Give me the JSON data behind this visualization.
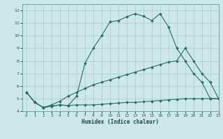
{
  "xlabel": "Humidex (Indice chaleur)",
  "ylabel": "",
  "bg_color": "#cce8e8",
  "grid_color": "#aacccc",
  "line_color": "#2a6b6b",
  "xlim": [
    -0.5,
    23
  ],
  "ylim": [
    4,
    12.5
  ],
  "xticks": [
    0,
    1,
    2,
    3,
    4,
    5,
    6,
    7,
    8,
    9,
    10,
    11,
    12,
    13,
    14,
    15,
    16,
    17,
    18,
    19,
    20,
    21,
    22,
    23
  ],
  "yticks": [
    4,
    5,
    6,
    7,
    8,
    9,
    10,
    11,
    12
  ],
  "line1_x": [
    0,
    1,
    2,
    3,
    4,
    5,
    6,
    7,
    8,
    9,
    10,
    11,
    12,
    13,
    14,
    15,
    16,
    17,
    18,
    19,
    20,
    21,
    22,
    23
  ],
  "line1_y": [
    5.5,
    4.7,
    4.3,
    4.4,
    4.5,
    4.45,
    5.2,
    7.8,
    9.0,
    10.0,
    11.1,
    11.2,
    11.5,
    11.75,
    11.55,
    11.2,
    11.75,
    10.7,
    9.0,
    8.0,
    7.0,
    6.3,
    5.0,
    5.0
  ],
  "line2_x": [
    0,
    1,
    2,
    3,
    4,
    5,
    6,
    7,
    8,
    9,
    10,
    11,
    12,
    13,
    14,
    15,
    16,
    17,
    18,
    19,
    20,
    21,
    22,
    23
  ],
  "line2_y": [
    5.5,
    4.7,
    4.3,
    4.5,
    4.8,
    5.2,
    5.5,
    5.8,
    6.1,
    6.3,
    6.5,
    6.7,
    6.9,
    7.1,
    7.3,
    7.5,
    7.7,
    7.9,
    8.0,
    9.0,
    8.0,
    7.0,
    6.3,
    5.0
  ],
  "line3_x": [
    0,
    1,
    2,
    3,
    4,
    5,
    6,
    7,
    8,
    9,
    10,
    11,
    12,
    13,
    14,
    15,
    16,
    17,
    18,
    19,
    20,
    21,
    22,
    23
  ],
  "line3_y": [
    5.5,
    4.7,
    4.3,
    4.4,
    4.5,
    4.45,
    4.5,
    4.5,
    4.5,
    4.55,
    4.6,
    4.65,
    4.7,
    4.7,
    4.75,
    4.8,
    4.85,
    4.9,
    4.95,
    5.0,
    5.0,
    5.0,
    5.0,
    5.0
  ]
}
